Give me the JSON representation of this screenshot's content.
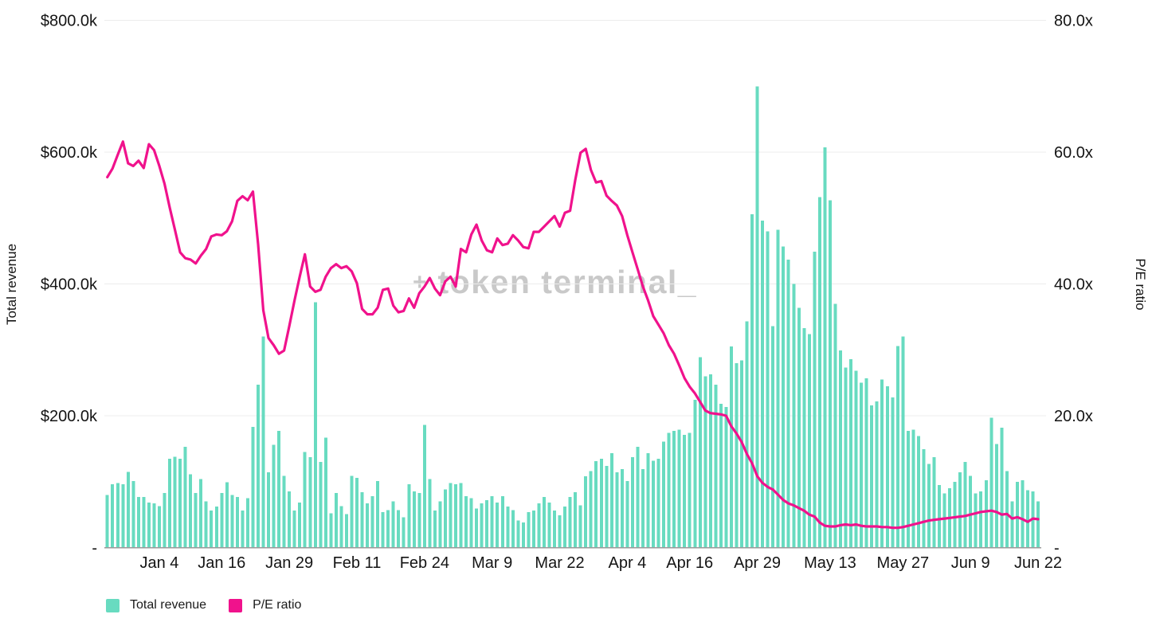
{
  "watermark": {
    "plus": "+",
    "text": "token terminal_"
  },
  "chart_data": {
    "type": "bar+line",
    "x_tick_labels": [
      {
        "label": "Jan 4",
        "day": 10
      },
      {
        "label": "Jan 16",
        "day": 22
      },
      {
        "label": "Jan 29",
        "day": 35
      },
      {
        "label": "Feb 11",
        "day": 48
      },
      {
        "label": "Feb 24",
        "day": 61
      },
      {
        "label": "Mar 9",
        "day": 74
      },
      {
        "label": "Mar 22",
        "day": 87
      },
      {
        "label": "Apr 4",
        "day": 100
      },
      {
        "label": "Apr 16",
        "day": 112
      },
      {
        "label": "Apr 29",
        "day": 125
      },
      {
        "label": "May 13",
        "day": 139
      },
      {
        "label": "May 27",
        "day": 153
      },
      {
        "label": "Jun 9",
        "day": 166
      },
      {
        "label": "Jun 22",
        "day": 179
      }
    ],
    "left_axis": {
      "title": "Total revenue",
      "max_k": 800,
      "min_k": 0,
      "ticks": [
        {
          "value_k": 800,
          "label": "$800.0k"
        },
        {
          "value_k": 600,
          "label": "$600.0k"
        },
        {
          "value_k": 400,
          "label": "$400.0k"
        },
        {
          "value_k": 200,
          "label": "$200.0k"
        },
        {
          "value_k": 0,
          "label": "-"
        }
      ]
    },
    "right_axis": {
      "title": "P/E ratio",
      "max": 80,
      "min": 0,
      "ticks": [
        {
          "value": 80,
          "label": "80.0x"
        },
        {
          "value": 60,
          "label": "60.0x"
        },
        {
          "value": 40,
          "label": "40.0x"
        },
        {
          "value": 20,
          "label": "20.0x"
        },
        {
          "value": 0,
          "label": "-"
        }
      ]
    },
    "legend": [
      {
        "label": "Total revenue",
        "color": "#68DBC0"
      },
      {
        "label": "P/E ratio",
        "color": "#F0128C"
      }
    ],
    "series": [
      {
        "name": "Total revenue",
        "type": "bar",
        "axis": "left",
        "unit": "USD thousands per day",
        "color": "#68DBC0",
        "values_k": [
          80,
          96,
          98,
          96,
          115,
          101,
          77,
          77,
          68,
          67,
          63,
          83,
          135,
          138,
          135,
          153,
          111,
          83,
          104,
          70,
          56,
          62,
          83,
          99,
          80,
          77,
          56,
          75,
          183,
          247,
          320,
          114,
          156,
          177,
          109,
          85,
          56,
          68,
          145,
          137,
          372,
          130,
          167,
          52,
          83,
          63,
          51,
          109,
          106,
          84,
          67,
          78,
          101,
          54,
          57,
          70,
          57,
          46,
          96,
          85,
          83,
          186,
          104,
          56,
          70,
          88,
          98,
          96,
          98,
          78,
          75,
          59,
          67,
          72,
          78,
          68,
          78,
          62,
          57,
          41,
          38,
          54,
          56,
          67,
          77,
          68,
          56,
          49,
          62,
          77,
          84,
          64,
          108,
          116,
          131,
          135,
          124,
          143,
          114,
          119,
          101,
          137,
          153,
          119,
          143,
          132,
          135,
          161,
          174,
          177,
          179,
          171,
          174,
          224,
          289,
          260,
          263,
          247,
          218,
          213,
          305,
          280,
          284,
          343,
          506,
          700,
          496,
          480,
          336,
          482,
          457,
          437,
          400,
          364,
          333,
          324,
          449,
          532,
          607,
          527,
          370,
          299,
          273,
          286,
          268,
          250,
          257,
          216,
          222,
          255,
          245,
          228,
          306,
          320,
          177,
          179,
          169,
          149,
          127,
          137,
          95,
          82,
          90,
          100,
          114,
          130,
          109,
          82,
          85,
          102,
          197,
          157,
          182,
          116,
          70,
          100,
          102,
          87,
          85,
          70
        ]
      },
      {
        "name": "P/E ratio",
        "type": "line",
        "axis": "right",
        "unit": "x",
        "color": "#F0128C",
        "values": [
          56.2,
          57.5,
          59.6,
          61.6,
          58.3,
          57.9,
          58.7,
          57.6,
          61.2,
          60.3,
          57.9,
          55.2,
          51.6,
          48.2,
          44.8,
          43.9,
          43.7,
          43.1,
          44.3,
          45.3,
          47.2,
          47.5,
          47.4,
          48.0,
          49.5,
          52.6,
          53.3,
          52.7,
          54.0,
          46.0,
          36.0,
          31.8,
          30.7,
          29.4,
          29.9,
          33.6,
          37.5,
          41.1,
          44.5,
          39.6,
          38.8,
          39.1,
          41.1,
          42.4,
          43.0,
          42.4,
          42.7,
          41.9,
          40.1,
          36.2,
          35.4,
          35.4,
          36.4,
          39.1,
          39.3,
          36.7,
          35.7,
          35.9,
          37.8,
          36.4,
          38.6,
          39.6,
          40.9,
          39.3,
          38.3,
          40.4,
          41.1,
          39.6,
          45.3,
          44.8,
          47.5,
          49.0,
          46.6,
          45.1,
          44.8,
          46.9,
          45.9,
          46.1,
          47.4,
          46.6,
          45.6,
          45.4,
          47.9,
          47.9,
          48.7,
          49.5,
          50.3,
          48.7,
          50.8,
          51.1,
          55.8,
          59.9,
          60.5,
          57.3,
          55.4,
          55.6,
          53.4,
          52.6,
          51.9,
          50.3,
          47.4,
          44.8,
          42.2,
          39.6,
          37.5,
          35.1,
          33.8,
          32.5,
          30.7,
          29.4,
          27.6,
          25.7,
          24.4,
          23.4,
          22.1,
          20.8,
          20.4,
          20.3,
          20.2,
          20.0,
          18.4,
          17.3,
          16.0,
          14.2,
          12.8,
          10.8,
          9.8,
          9.2,
          8.8,
          8.0,
          7.2,
          6.7,
          6.4,
          6.0,
          5.6,
          5.0,
          4.7,
          3.8,
          3.3,
          3.2,
          3.2,
          3.4,
          3.5,
          3.4,
          3.5,
          3.3,
          3.2,
          3.2,
          3.2,
          3.1,
          3.1,
          3.0,
          3.0,
          3.1,
          3.3,
          3.5,
          3.7,
          3.9,
          4.1,
          4.2,
          4.3,
          4.4,
          4.5,
          4.6,
          4.7,
          4.8,
          5.0,
          5.2,
          5.4,
          5.5,
          5.6,
          5.4,
          5.0,
          5.1,
          4.4,
          4.6,
          4.3,
          3.9,
          4.4,
          4.3
        ]
      }
    ],
    "layout": {
      "grid": true,
      "legend_position": "bottom-left",
      "colors": {
        "bar": "#68DBC0",
        "line": "#F0128C",
        "gridline": "#ECECEC",
        "axis_line": "#9A9A9A",
        "tick_text": "#141414",
        "watermark": "#C9C9C9",
        "background": "#FFFFFF"
      }
    }
  }
}
